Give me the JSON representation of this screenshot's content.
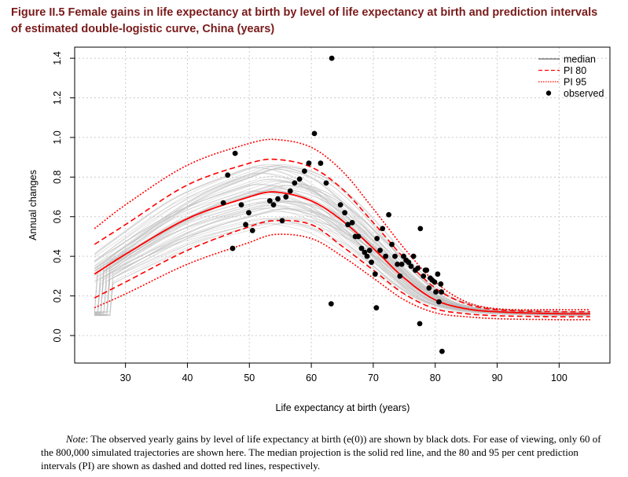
{
  "title_line1": "Figure II.5 Female gains in life expectancy at birth by level of life expectancy at birth and prediction intervals",
  "title_line2": "of estimated double-logistic curve, China (years)",
  "note_label": "Note",
  "note_text": ": The observed yearly gains by level of life expectancy at birth (e(0)) are shown by black dots. For ease of viewing, only 60 of the 800,000 simulated trajectories are shown here. The median projection is the solid red line, and the 80 and 95 per cent prediction intervals (PI) are shown as dashed and dotted red lines, respectively.",
  "chart_data": {
    "type": "line",
    "xlabel": "Life expectancy at birth (years)",
    "ylabel": "Annual changes",
    "xlim": [
      21.8,
      108.2
    ],
    "ylim": [
      -0.139,
      1.456
    ],
    "xticks": [
      30,
      40,
      50,
      60,
      70,
      80,
      90,
      100
    ],
    "xtick_labels": [
      "30",
      "40",
      "50",
      "60",
      "70",
      "80",
      "90",
      "100"
    ],
    "yticks": [
      0.0,
      0.2,
      0.4,
      0.6,
      0.8,
      1.0,
      1.2,
      1.4
    ],
    "ytick_labels": [
      "0.0",
      "0.2",
      "0.4",
      "0.6",
      "0.8",
      "1.0",
      "1.2",
      "1.4"
    ],
    "grid": true,
    "legend_position": "top-right",
    "legend": [
      {
        "label": "median",
        "style": "solid"
      },
      {
        "label": "PI 80",
        "style": "dashed"
      },
      {
        "label": "PI 95",
        "style": "dotted"
      },
      {
        "label": "observed",
        "style": "point"
      }
    ],
    "colors": {
      "median": "#ff0000",
      "pi": "#ff0000",
      "trajectories": "#bbbbbb",
      "observed": "#000000",
      "title": "#7a1a1a"
    },
    "simulated_trajectories_shown": 60,
    "x": [
      25,
      30,
      40,
      50,
      54,
      60,
      65,
      70,
      75,
      80,
      85,
      90,
      100,
      105
    ],
    "series": [
      {
        "name": "median",
        "values": [
          0.31,
          0.41,
          0.59,
          0.7,
          0.725,
          0.68,
          0.58,
          0.44,
          0.29,
          0.18,
          0.135,
          0.12,
          0.11,
          0.11
        ]
      },
      {
        "name": "PI 80",
        "bound": "upper",
        "values": [
          0.46,
          0.56,
          0.76,
          0.87,
          0.89,
          0.85,
          0.74,
          0.57,
          0.39,
          0.24,
          0.16,
          0.13,
          0.12,
          0.12
        ]
      },
      {
        "name": "PI 80",
        "bound": "lower",
        "values": [
          0.19,
          0.27,
          0.43,
          0.55,
          0.58,
          0.56,
          0.45,
          0.33,
          0.21,
          0.135,
          0.11,
          0.1,
          0.095,
          0.095
        ]
      },
      {
        "name": "PI 95",
        "bound": "upper",
        "values": [
          0.54,
          0.66,
          0.86,
          0.97,
          0.99,
          0.95,
          0.83,
          0.64,
          0.44,
          0.27,
          0.17,
          0.135,
          0.13,
          0.13
        ]
      },
      {
        "name": "PI 95",
        "bound": "lower",
        "values": [
          0.14,
          0.21,
          0.36,
          0.47,
          0.51,
          0.49,
          0.4,
          0.29,
          0.18,
          0.115,
          0.095,
          0.085,
          0.08,
          0.08
        ]
      }
    ],
    "observed": [
      [
        47.7,
        0.92
      ],
      [
        46.5,
        0.81
      ],
      [
        45.8,
        0.67
      ],
      [
        48.7,
        0.66
      ],
      [
        49.9,
        0.62
      ],
      [
        49.4,
        0.56
      ],
      [
        50.5,
        0.53
      ],
      [
        47.3,
        0.44
      ],
      [
        53.3,
        0.68
      ],
      [
        53.9,
        0.66
      ],
      [
        54.6,
        0.69
      ],
      [
        55.3,
        0.58
      ],
      [
        55.9,
        0.7
      ],
      [
        56.6,
        0.73
      ],
      [
        57.3,
        0.77
      ],
      [
        58.1,
        0.79
      ],
      [
        58.9,
        0.83
      ],
      [
        59.6,
        0.87
      ],
      [
        60.5,
        1.02
      ],
      [
        61.5,
        0.87
      ],
      [
        62.4,
        0.77
      ],
      [
        63.2,
        0.16
      ],
      [
        63.3,
        1.4
      ],
      [
        64.7,
        0.66
      ],
      [
        65.4,
        0.62
      ],
      [
        65.9,
        0.56
      ],
      [
        66.6,
        0.57
      ],
      [
        67.1,
        0.5
      ],
      [
        67.6,
        0.5
      ],
      [
        68.1,
        0.44
      ],
      [
        68.6,
        0.42
      ],
      [
        69.0,
        0.4
      ],
      [
        69.4,
        0.43
      ],
      [
        69.7,
        0.37
      ],
      [
        70.3,
        0.31
      ],
      [
        70.5,
        0.14
      ],
      [
        70.6,
        0.49
      ],
      [
        71.1,
        0.43
      ],
      [
        71.5,
        0.54
      ],
      [
        72.0,
        0.4
      ],
      [
        72.5,
        0.61
      ],
      [
        73.0,
        0.46
      ],
      [
        73.5,
        0.4
      ],
      [
        73.9,
        0.36
      ],
      [
        74.3,
        0.3
      ],
      [
        74.6,
        0.36
      ],
      [
        74.9,
        0.4
      ],
      [
        75.3,
        0.38
      ],
      [
        75.7,
        0.37
      ],
      [
        76.1,
        0.35
      ],
      [
        76.5,
        0.4
      ],
      [
        76.8,
        0.33
      ],
      [
        77.2,
        0.34
      ],
      [
        77.6,
        0.54
      ],
      [
        77.5,
        0.06
      ],
      [
        78.1,
        0.3
      ],
      [
        78.4,
        0.33
      ],
      [
        78.6,
        0.33
      ],
      [
        79.0,
        0.24
      ],
      [
        79.2,
        0.29
      ],
      [
        79.5,
        0.28
      ],
      [
        79.9,
        0.27
      ],
      [
        80.1,
        0.22
      ],
      [
        80.4,
        0.31
      ],
      [
        80.6,
        0.17
      ],
      [
        80.9,
        0.26
      ],
      [
        81.0,
        0.22
      ],
      [
        81.1,
        -0.08
      ]
    ]
  }
}
